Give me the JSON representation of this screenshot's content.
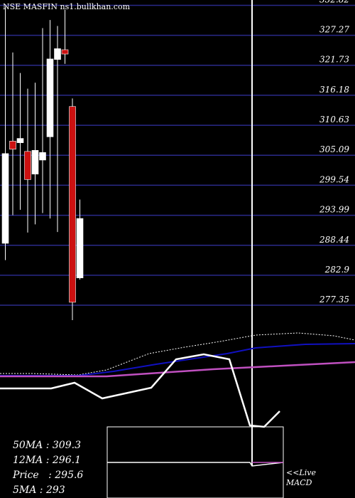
{
  "chart_data": {
    "type": "candlestick",
    "title": "NSE MASFIN",
    "watermark": "ns1.bullkhan.com",
    "ylim": [
      274.2,
      333.8
    ],
    "yticks": [
      "332.82",
      "327.27",
      "321.73",
      "316.18",
      "310.63",
      "305.09",
      "299.54",
      "293.99",
      "288.44",
      "282.9",
      "277.35"
    ],
    "candles": [
      {
        "open": 288.8,
        "high": 332.6,
        "low": 285.7,
        "close": 305.4,
        "color": "white"
      },
      {
        "open": 306.2,
        "high": 324.1,
        "low": 294.0,
        "close": 307.7,
        "color": "red"
      },
      {
        "open": 308.2,
        "high": 320.3,
        "low": 295.0,
        "close": 307.4,
        "color": "white"
      },
      {
        "open": 305.8,
        "high": 317.4,
        "low": 290.8,
        "close": 300.6,
        "color": "red"
      },
      {
        "open": 301.6,
        "high": 318.5,
        "low": 292.3,
        "close": 306.0,
        "color": "white"
      },
      {
        "open": 304.2,
        "high": 328.6,
        "low": 294.4,
        "close": 305.6,
        "color": "white"
      },
      {
        "open": 308.5,
        "high": 330.1,
        "low": 293.4,
        "close": 322.9,
        "color": "white"
      },
      {
        "open": 322.8,
        "high": 329.0,
        "low": 290.9,
        "close": 324.8,
        "color": "white"
      },
      {
        "open": 324.6,
        "high": 332.0,
        "low": 322.0,
        "close": 323.8,
        "color": "red"
      },
      {
        "open": 314.1,
        "high": 315.6,
        "low": 274.6,
        "close": 277.9,
        "color": "red"
      },
      {
        "open": 282.4,
        "high": 296.9,
        "low": 282.1,
        "close": 293.4,
        "color": "white"
      }
    ],
    "stats": [
      {
        "label": "50MA",
        "value": "309.3"
      },
      {
        "label": "12MA",
        "value": "296.1"
      },
      {
        "label": "Price",
        "value": "295.6"
      },
      {
        "label": "5MA",
        "value": "293"
      }
    ],
    "macd_label_line1": "<<Live",
    "macd_label_line2": "MACD",
    "colors": {
      "background": "#000000",
      "grid": "#2a2a8a",
      "red_candle": "#cc1111",
      "white_candle": "#ffffff",
      "ma_blue": "#1010c0",
      "ma_magenta": "#c050c0"
    }
  }
}
